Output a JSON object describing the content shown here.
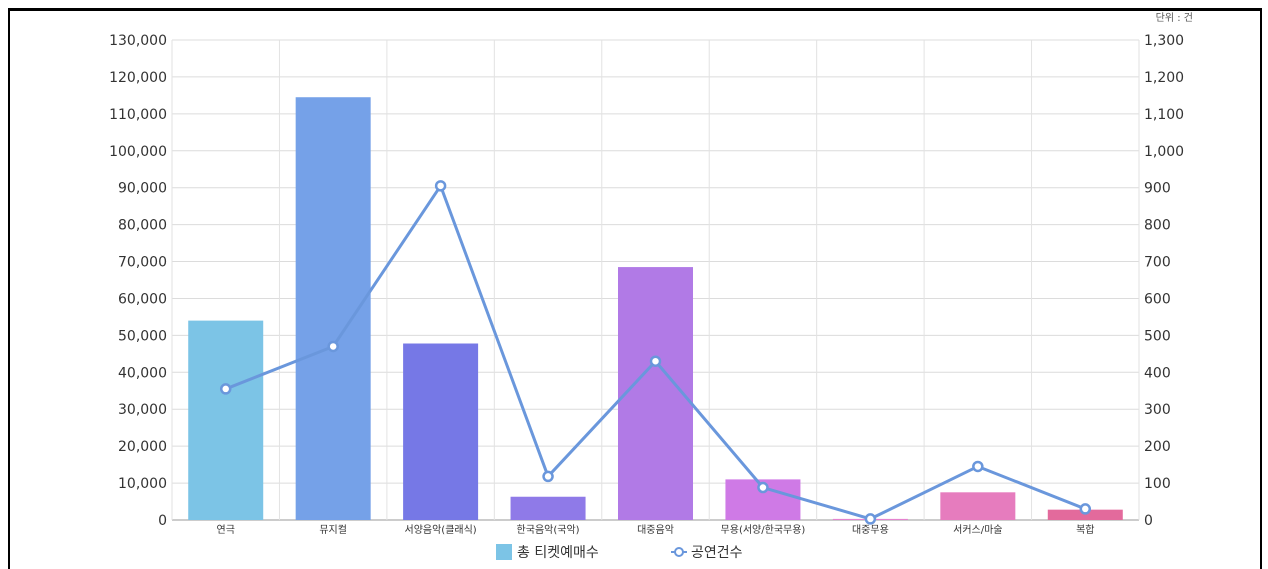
{
  "chart_data": {
    "type": "bar",
    "unit_label": "단위 : 건",
    "categories": [
      "연극",
      "뮤지컬",
      "서양음악(클래식)",
      "한국음악(국악)",
      "대중음악",
      "무용(서양/한국무용)",
      "대중무용",
      "서커스/마술",
      "복합"
    ],
    "series": [
      {
        "name": "총 티켓예매수",
        "type": "bar",
        "axis": "left",
        "values": [
          54000,
          114500,
          47800,
          6300,
          68500,
          11000,
          300,
          7500,
          2800
        ],
        "colors": [
          "#7cc4e6",
          "#75a1e8",
          "#7678e6",
          "#8f7ae8",
          "#b17ae6",
          "#cf7ae6",
          "#e583cf",
          "#e67cbe",
          "#e36a9c"
        ]
      },
      {
        "name": "공연건수",
        "type": "line",
        "axis": "right",
        "values": [
          355,
          470,
          905,
          118,
          430,
          88,
          3,
          145,
          30
        ],
        "color": "#6a97dc"
      }
    ],
    "y_left": {
      "min": 0,
      "max": 130000,
      "step": 10000,
      "tick_labels": [
        "0",
        "10,000",
        "20,000",
        "30,000",
        "40,000",
        "50,000",
        "60,000",
        "70,000",
        "80,000",
        "90,000",
        "100,000",
        "110,000",
        "120,000",
        "130,000"
      ]
    },
    "y_right": {
      "min": 0,
      "max": 1300,
      "step": 100,
      "tick_labels": [
        "0",
        "100",
        "200",
        "300",
        "400",
        "500",
        "600",
        "700",
        "800",
        "900",
        "1,000",
        "1,100",
        "1,200",
        "1,300"
      ]
    },
    "grid": true,
    "legend_position": "bottom"
  }
}
